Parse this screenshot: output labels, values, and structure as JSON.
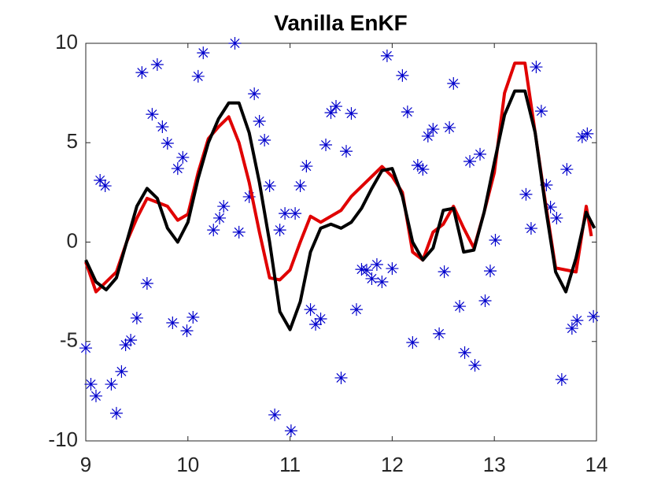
{
  "chart_data": {
    "type": "line",
    "title": "Vanilla EnKF",
    "xlim": [
      9,
      14
    ],
    "ylim": [
      -10,
      10
    ],
    "xticks": [
      9,
      10,
      11,
      12,
      13,
      14
    ],
    "yticks": [
      -10,
      -5,
      0,
      5,
      10
    ],
    "series": [
      {
        "color": "#0000cc",
        "style": "asterisk",
        "x": [
          9.0,
          9.05,
          9.1,
          9.14,
          9.19,
          9.25,
          9.3,
          9.35,
          9.39,
          9.44,
          9.5,
          9.55,
          9.6,
          9.65,
          9.7,
          9.75,
          9.8,
          9.85,
          9.9,
          9.95,
          9.99,
          10.05,
          10.1,
          10.15,
          10.25,
          10.31,
          10.35,
          10.46,
          10.5,
          10.6,
          10.65,
          10.7,
          10.75,
          10.8,
          10.85,
          10.9,
          10.95,
          11.01,
          11.05,
          11.1,
          11.16,
          11.2,
          11.25,
          11.3,
          11.35,
          11.4,
          11.45,
          11.5,
          11.55,
          11.6,
          11.65,
          11.7,
          11.75,
          11.8,
          11.85,
          11.9,
          11.95,
          12.0,
          12.1,
          12.15,
          12.2,
          12.25,
          12.3,
          12.35,
          12.4,
          12.46,
          12.51,
          12.56,
          12.6,
          12.66,
          12.71,
          12.76,
          12.81,
          12.86,
          12.91,
          12.96,
          13.01,
          13.31,
          13.36,
          13.41,
          13.46,
          13.51,
          13.55,
          13.61,
          13.66,
          13.71,
          13.76,
          13.81,
          13.86,
          13.91,
          13.97
        ],
        "values": [
          -5.33,
          -7.15,
          -7.74,
          3.11,
          2.83,
          -7.15,
          -8.61,
          -6.51,
          -5.17,
          -4.93,
          -3.82,
          8.53,
          -2.08,
          6.43,
          8.93,
          5.8,
          4.97,
          -4.06,
          3.7,
          4.26,
          -4.46,
          -3.78,
          8.34,
          9.52,
          0.61,
          1.21,
          1.8,
          10.0,
          0.5,
          2.28,
          7.46,
          6.08,
          5.13,
          2.83,
          -8.69,
          0.61,
          1.44,
          -9.49,
          1.44,
          2.83,
          3.82,
          -3.39,
          -4.14,
          -3.86,
          4.89,
          6.51,
          6.83,
          -6.83,
          4.57,
          6.47,
          -3.39,
          -1.37,
          -1.41,
          -1.84,
          -1.13,
          -2.0,
          9.37,
          -1.33,
          8.38,
          6.55,
          -5.05,
          3.86,
          3.66,
          5.33,
          5.68,
          -4.61,
          -1.49,
          5.76,
          7.98,
          -3.23,
          -5.56,
          4.06,
          -6.2,
          4.42,
          -2.95,
          -1.45,
          0.1,
          2.4,
          0.69,
          8.81,
          6.59,
          2.87,
          1.76,
          1.21,
          -6.91,
          3.66,
          -4.34,
          -3.94,
          5.29,
          5.45,
          -3.74
        ]
      },
      {
        "color": "#e00000",
        "style": "line",
        "x": [
          9.0,
          9.1,
          9.2,
          9.3,
          9.4,
          9.5,
          9.6,
          9.7,
          9.8,
          9.9,
          10.0,
          10.1,
          10.2,
          10.3,
          10.4,
          10.5,
          10.6,
          10.7,
          10.8,
          10.9,
          11.0,
          11.1,
          11.2,
          11.3,
          11.4,
          11.5,
          11.6,
          11.7,
          11.8,
          11.9,
          12.0,
          12.1,
          12.2,
          12.3,
          12.4,
          12.5,
          12.6,
          12.7,
          12.8,
          12.9,
          13.0,
          13.1,
          13.2,
          13.3,
          13.4,
          13.5,
          13.6,
          13.7,
          13.8,
          13.9,
          13.95
        ],
        "values": [
          -1.0,
          -2.5,
          -2.0,
          -1.5,
          0.0,
          1.2,
          2.2,
          2.0,
          1.8,
          1.1,
          1.4,
          3.5,
          5.2,
          5.8,
          6.3,
          5.0,
          3.0,
          0.5,
          -1.8,
          -1.9,
          -1.4,
          0.0,
          1.3,
          1.0,
          1.3,
          1.6,
          2.3,
          2.8,
          3.3,
          3.8,
          3.3,
          2.5,
          -0.5,
          -0.9,
          0.5,
          0.9,
          1.8,
          0.7,
          -0.3,
          1.5,
          3.5,
          7.5,
          9.0,
          9.0,
          5.5,
          2.0,
          -1.3,
          -1.4,
          -1.5,
          1.8,
          0.3
        ]
      },
      {
        "color": "#000000",
        "style": "line",
        "x": [
          9.0,
          9.1,
          9.2,
          9.3,
          9.4,
          9.5,
          9.6,
          9.7,
          9.8,
          9.9,
          10.0,
          10.1,
          10.2,
          10.3,
          10.4,
          10.5,
          10.6,
          10.7,
          10.8,
          10.9,
          11.0,
          11.1,
          11.2,
          11.3,
          11.4,
          11.5,
          11.6,
          11.7,
          11.8,
          11.9,
          12.0,
          12.1,
          12.2,
          12.3,
          12.4,
          12.5,
          12.6,
          12.7,
          12.8,
          12.9,
          13.0,
          13.1,
          13.2,
          13.3,
          13.4,
          13.5,
          13.6,
          13.7,
          13.8,
          13.9,
          13.98
        ],
        "values": [
          -0.9,
          -2.0,
          -2.4,
          -1.8,
          0.0,
          1.8,
          2.7,
          2.2,
          0.7,
          0.0,
          1.0,
          3.2,
          5.0,
          6.2,
          7.0,
          7.0,
          5.5,
          3.0,
          0.0,
          -3.5,
          -4.4,
          -3.0,
          -0.5,
          0.7,
          0.9,
          0.7,
          1.0,
          1.7,
          2.7,
          3.6,
          3.7,
          2.3,
          0.0,
          -0.9,
          -0.3,
          1.6,
          1.7,
          -0.5,
          -0.4,
          1.5,
          4.0,
          6.4,
          7.6,
          7.6,
          5.5,
          1.8,
          -1.5,
          -2.5,
          -0.8,
          1.5,
          0.7
        ]
      }
    ]
  }
}
